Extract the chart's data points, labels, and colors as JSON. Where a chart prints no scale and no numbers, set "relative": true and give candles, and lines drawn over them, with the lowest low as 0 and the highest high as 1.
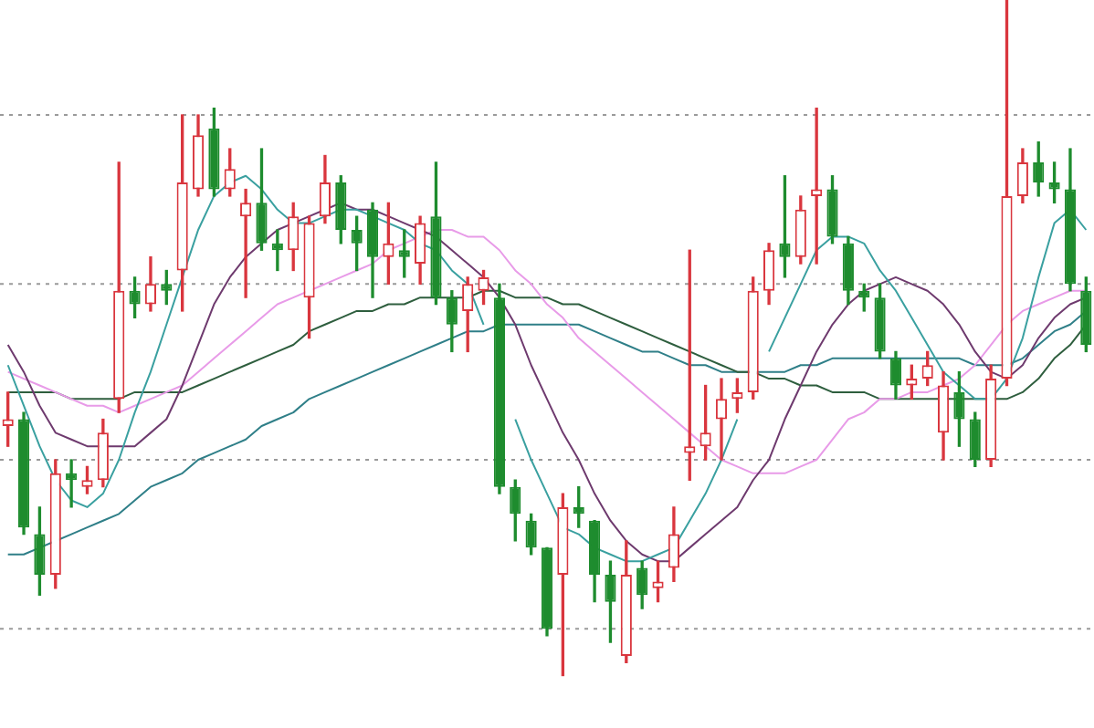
{
  "chart_data": {
    "type": "candlestick",
    "relative": true,
    "legend": false,
    "marker": "none",
    "ref_lines": [
      {
        "axis": "y",
        "value": 0.83,
        "color": "#9a9a9a",
        "line_style": "dotted"
      },
      {
        "axis": "y",
        "value": 0.58,
        "color": "#9a9a9a",
        "line_style": "dotted"
      },
      {
        "axis": "y",
        "value": 0.32,
        "color": "#9a9a9a",
        "line_style": "dotted"
      },
      {
        "axis": "y",
        "value": 0.07,
        "color": "#9a9a9a",
        "line_style": "dotted"
      }
    ],
    "categories": [
      null,
      null,
      null,
      null,
      null,
      null,
      null,
      null,
      null,
      null,
      null,
      null,
      null,
      null,
      null,
      null,
      null,
      null,
      null,
      null,
      null,
      null,
      null,
      null,
      null,
      null,
      null,
      null,
      null,
      null,
      null,
      null,
      null,
      null,
      null,
      null,
      null,
      null,
      null,
      null,
      null,
      null,
      null,
      null,
      null,
      null,
      null,
      null,
      null,
      null,
      null,
      null,
      null,
      null,
      null,
      null,
      null,
      null,
      null,
      null,
      null,
      null,
      null,
      null,
      null,
      null,
      null,
      null,
      null
    ],
    "ohlc": [
      [
        0.37,
        0.42,
        0.34,
        0.38
      ],
      [
        0.38,
        0.39,
        0.21,
        0.22
      ],
      [
        0.21,
        0.25,
        0.12,
        0.15
      ],
      [
        0.15,
        0.32,
        0.13,
        0.3
      ],
      [
        0.3,
        0.32,
        0.25,
        0.29
      ],
      [
        0.28,
        0.31,
        0.27,
        0.29
      ],
      [
        0.29,
        0.38,
        0.28,
        0.36
      ],
      [
        0.41,
        0.76,
        0.39,
        0.57
      ],
      [
        0.57,
        0.59,
        0.53,
        0.55
      ],
      [
        0.55,
        0.62,
        0.54,
        0.58
      ],
      [
        0.58,
        0.6,
        0.55,
        0.57
      ],
      [
        0.6,
        0.83,
        0.54,
        0.73
      ],
      [
        0.72,
        0.83,
        0.71,
        0.8
      ],
      [
        0.81,
        0.84,
        0.71,
        0.72
      ],
      [
        0.72,
        0.78,
        0.71,
        0.75
      ],
      [
        0.68,
        0.72,
        0.56,
        0.7
      ],
      [
        0.7,
        0.78,
        0.63,
        0.64
      ],
      [
        0.64,
        0.66,
        0.6,
        0.63
      ],
      [
        0.63,
        0.7,
        0.6,
        0.68
      ],
      [
        0.56,
        0.68,
        0.5,
        0.67
      ],
      [
        0.68,
        0.77,
        0.67,
        0.73
      ],
      [
        0.73,
        0.74,
        0.64,
        0.66
      ],
      [
        0.66,
        0.68,
        0.6,
        0.64
      ],
      [
        0.69,
        0.7,
        0.56,
        0.62
      ],
      [
        0.62,
        0.7,
        0.58,
        0.64
      ],
      [
        0.63,
        0.66,
        0.59,
        0.62
      ],
      [
        0.61,
        0.68,
        0.58,
        0.67
      ],
      [
        0.68,
        0.76,
        0.55,
        0.56
      ],
      [
        0.56,
        0.57,
        0.48,
        0.52
      ],
      [
        0.54,
        0.59,
        0.48,
        0.58
      ],
      [
        0.57,
        0.6,
        0.55,
        0.59
      ],
      [
        0.56,
        0.58,
        0.27,
        0.28
      ],
      [
        0.28,
        0.29,
        0.2,
        0.24
      ],
      [
        0.23,
        0.24,
        0.18,
        0.19
      ],
      [
        0.19,
        0.19,
        0.06,
        0.07
      ],
      [
        0.15,
        0.27,
        0,
        0.25
      ],
      [
        0.25,
        0.28,
        0.22,
        0.24
      ],
      [
        0.23,
        0.23,
        0.11,
        0.15
      ],
      [
        0.15,
        0.17,
        0.05,
        0.11
      ],
      [
        0.03,
        0.2,
        0.02,
        0.15
      ],
      [
        0.16,
        0.17,
        0.1,
        0.12
      ],
      [
        0.13,
        0.17,
        0.11,
        0.14
      ],
      [
        0.16,
        0.25,
        0.14,
        0.21
      ],
      [
        0.33,
        0.63,
        0.29,
        0.34
      ],
      [
        0.34,
        0.43,
        0.32,
        0.36
      ],
      [
        0.38,
        0.44,
        0.32,
        0.41
      ],
      [
        0.41,
        0.44,
        0.39,
        0.42
      ],
      [
        0.42,
        0.59,
        0.41,
        0.57
      ],
      [
        0.57,
        0.64,
        0.55,
        0.63
      ],
      [
        0.64,
        0.74,
        0.59,
        0.62
      ],
      [
        0.62,
        0.71,
        0.61,
        0.69
      ],
      [
        0.71,
        0.84,
        0.61,
        0.72
      ],
      [
        0.72,
        0.74,
        0.64,
        0.65
      ],
      [
        0.64,
        0.65,
        0.55,
        0.57
      ],
      [
        0.57,
        0.58,
        0.54,
        0.56
      ],
      [
        0.56,
        0.58,
        0.47,
        0.48
      ],
      [
        0.47,
        0.48,
        0.41,
        0.43
      ],
      [
        0.43,
        0.46,
        0.41,
        0.44
      ],
      [
        0.44,
        0.48,
        0.43,
        0.46
      ],
      [
        0.36,
        0.45,
        0.32,
        0.43
      ],
      [
        0.42,
        0.45,
        0.34,
        0.38
      ],
      [
        0.38,
        0.39,
        0.31,
        0.32
      ],
      [
        0.32,
        0.46,
        0.31,
        0.44
      ],
      [
        0.44,
        1,
        0.43,
        0.71
      ],
      [
        0.71,
        0.78,
        0.7,
        0.76
      ],
      [
        0.76,
        0.79,
        0.71,
        0.73
      ],
      [
        0.73,
        0.76,
        0.7,
        0.72
      ],
      [
        0.72,
        0.78,
        0.57,
        0.58
      ],
      [
        0.57,
        0.59,
        0.48,
        0.49
      ]
    ],
    "colors": [
      "#d9363e",
      "#1e8c2e",
      "#1e8c2e",
      "#d9363e",
      "#1e8c2e",
      "#d9363e",
      "#d9363e",
      "#d9363e",
      "#1e8c2e",
      "#d9363e",
      "#1e8c2e",
      "#d9363e",
      "#d9363e",
      "#1e8c2e",
      "#d9363e",
      "#d9363e",
      "#1e8c2e",
      "#1e8c2e",
      "#d9363e",
      "#d9363e",
      "#d9363e",
      "#1e8c2e",
      "#1e8c2e",
      "#1e8c2e",
      "#d9363e",
      "#1e8c2e",
      "#d9363e",
      "#1e8c2e",
      "#1e8c2e",
      "#d9363e",
      "#d9363e",
      "#1e8c2e",
      "#1e8c2e",
      "#1e8c2e",
      "#1e8c2e",
      "#d9363e",
      "#1e8c2e",
      "#1e8c2e",
      "#1e8c2e",
      "#d9363e",
      "#1e8c2e",
      "#d9363e",
      "#d9363e",
      "#d9363e",
      "#d9363e",
      "#d9363e",
      "#d9363e",
      "#d9363e",
      "#d9363e",
      "#1e8c2e",
      "#d9363e",
      "#d9363e",
      "#1e8c2e",
      "#1e8c2e",
      "#1e8c2e",
      "#1e8c2e",
      "#1e8c2e",
      "#d9363e",
      "#d9363e",
      "#d9363e",
      "#1e8c2e",
      "#1e8c2e",
      "#d9363e",
      "#d9363e",
      "#d9363e",
      "#1e8c2e",
      "#1e8c2e",
      "#1e8c2e",
      "#1e8c2e"
    ],
    "series": [
      {
        "type": "line",
        "color": "#3aa0a0",
        "values": [
          0.46,
          0.4,
          0.34,
          0.29,
          0.26,
          0.25,
          0.27,
          0.32,
          0.39,
          0.45,
          0.52,
          0.59,
          0.66,
          0.71,
          0.73,
          0.74,
          0.72,
          0.69,
          0.67,
          0.67,
          0.68,
          0.69,
          0.69,
          0.68,
          0.67,
          0.66,
          0.64,
          0.63,
          0.6,
          0.58,
          0.52,
          null,
          0.38,
          0.32,
          0.27,
          0.22,
          0.21,
          0.19,
          0.18,
          0.17,
          0.17,
          0.18,
          0.19,
          0.23,
          0.27,
          0.32,
          0.38,
          null,
          0.48,
          0.53,
          0.58,
          0.63,
          0.65,
          0.65,
          0.64,
          0.6,
          0.57,
          0.53,
          0.49,
          0.45,
          0.43,
          0.41,
          0.41,
          0.44,
          0.5,
          0.59,
          0.67,
          0.69,
          0.66
        ]
      },
      {
        "type": "line",
        "color": "#6e3a6e",
        "values": [
          0.49,
          0.45,
          0.4,
          0.36,
          0.35,
          0.34,
          0.34,
          0.34,
          0.34,
          0.36,
          0.38,
          0.43,
          0.49,
          0.55,
          0.59,
          0.62,
          0.64,
          0.66,
          0.67,
          0.68,
          0.69,
          0.7,
          0.69,
          0.69,
          0.68,
          0.67,
          0.66,
          0.65,
          0.63,
          0.61,
          0.59,
          0.56,
          0.52,
          0.46,
          0.41,
          0.36,
          0.32,
          0.27,
          0.23,
          0.2,
          0.18,
          0.17,
          0.17,
          0.19,
          0.21,
          0.23,
          0.25,
          0.29,
          0.32,
          0.38,
          0.43,
          0.48,
          0.52,
          0.55,
          0.57,
          0.58,
          0.59,
          0.58,
          0.57,
          0.55,
          0.52,
          0.48,
          0.45,
          0.44,
          0.46,
          0.5,
          0.53,
          0.55,
          0.56
        ]
      },
      {
        "type": "line",
        "color": "#e89be8",
        "values": [
          0.45,
          0.44,
          0.43,
          0.42,
          0.41,
          0.4,
          0.4,
          0.39,
          0.4,
          0.41,
          0.42,
          0.43,
          0.45,
          0.47,
          0.49,
          0.51,
          0.53,
          0.55,
          0.56,
          0.57,
          0.58,
          0.59,
          0.6,
          0.61,
          0.63,
          0.64,
          0.65,
          0.66,
          0.66,
          0.65,
          0.65,
          0.63,
          0.6,
          0.58,
          0.55,
          0.53,
          0.5,
          0.48,
          0.46,
          0.44,
          0.42,
          0.4,
          0.38,
          0.36,
          0.34,
          0.32,
          0.31,
          0.3,
          0.3,
          0.3,
          0.31,
          0.32,
          0.35,
          0.38,
          0.39,
          0.41,
          0.41,
          0.42,
          0.42,
          0.43,
          0.44,
          0.46,
          0.49,
          0.52,
          0.54,
          0.55,
          0.56,
          0.57,
          0.57
        ]
      },
      {
        "type": "line",
        "color": "#2e5e3e",
        "values": [
          0.42,
          0.42,
          0.42,
          0.42,
          0.41,
          0.41,
          0.41,
          0.41,
          0.42,
          0.42,
          0.42,
          0.42,
          0.43,
          0.44,
          0.45,
          0.46,
          0.47,
          0.48,
          0.49,
          0.51,
          0.52,
          0.53,
          0.54,
          0.54,
          0.55,
          0.55,
          0.56,
          0.56,
          0.56,
          0.56,
          0.57,
          0.57,
          0.56,
          0.56,
          0.56,
          0.55,
          0.55,
          0.54,
          0.53,
          0.52,
          0.51,
          0.5,
          0.49,
          0.48,
          0.47,
          0.46,
          0.45,
          0.45,
          0.44,
          0.44,
          0.43,
          0.43,
          0.42,
          0.42,
          0.42,
          0.41,
          0.41,
          0.41,
          0.41,
          0.41,
          0.41,
          0.41,
          0.41,
          0.41,
          0.42,
          0.44,
          0.47,
          0.49,
          0.52
        ]
      },
      {
        "type": "line",
        "color": "#2f7f88",
        "values": [
          0.18,
          0.18,
          0.19,
          0.2,
          0.21,
          0.22,
          0.23,
          0.24,
          0.26,
          0.28,
          0.29,
          0.3,
          0.32,
          0.33,
          0.34,
          0.35,
          0.37,
          0.38,
          0.39,
          0.41,
          0.42,
          0.43,
          0.44,
          0.45,
          0.46,
          0.47,
          0.48,
          0.49,
          0.5,
          0.51,
          0.51,
          0.52,
          0.52,
          0.52,
          0.52,
          0.52,
          0.52,
          0.51,
          0.5,
          0.49,
          0.48,
          0.48,
          0.47,
          0.46,
          0.46,
          0.45,
          0.45,
          0.45,
          0.45,
          0.45,
          0.46,
          0.46,
          0.47,
          0.47,
          0.47,
          0.47,
          0.47,
          0.47,
          0.47,
          0.47,
          0.47,
          0.46,
          0.46,
          0.46,
          0.47,
          0.49,
          0.51,
          0.52,
          0.54
        ]
      }
    ]
  }
}
